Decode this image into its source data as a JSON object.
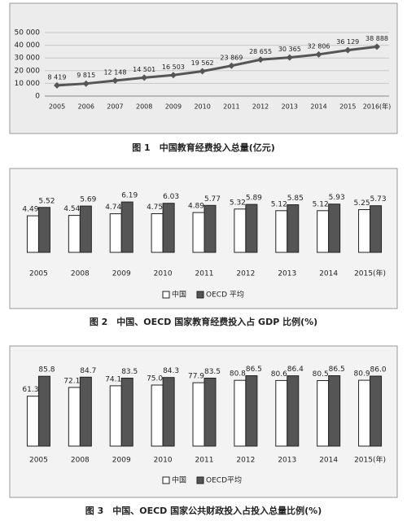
{
  "chart_data": [
    {
      "type": "line",
      "title": "图 1　中国教育经费投入总量(亿元)",
      "categories": [
        "2005",
        "2006",
        "2007",
        "2008",
        "2009",
        "2010",
        "2011",
        "2012",
        "2013",
        "2014",
        "2015",
        "2016(年)"
      ],
      "values": [
        8419,
        9815,
        12148,
        14501,
        16503,
        19562,
        23869,
        28655,
        30365,
        32806,
        36129,
        38888
      ],
      "value_labels": [
        "8 419",
        "9 815",
        "12 148",
        "14 501",
        "16 503",
        "19 562",
        "23 869",
        "28 655",
        "30 365",
        "32 806",
        "36 129",
        "38 888"
      ],
      "color": "#555555",
      "ylim": [
        0,
        50000
      ],
      "yticks": [
        0,
        {
          "value": 10000,
          "label": "10 000"
        },
        {
          "value": 20000,
          "label": "20 000"
        },
        {
          "value": 30000,
          "label": "30 000"
        },
        {
          "value": 40000,
          "label": "40 000"
        },
        {
          "value": 50000,
          "label": "50 000"
        }
      ],
      "grid": true
    },
    {
      "type": "bar",
      "title": "图 2　中国、OECD 国家教育经费投入占 GDP 比例(%)",
      "categories": [
        "2005",
        "2008",
        "2009",
        "2010",
        "2011",
        "2012",
        "2013",
        "2014",
        "2015(年)"
      ],
      "series": [
        {
          "name": "中国",
          "color": "#ffffff",
          "values": [
            4.49,
            4.54,
            4.74,
            4.75,
            4.89,
            5.32,
            5.12,
            5.12,
            5.25
          ]
        },
        {
          "name": "OECD 平均",
          "color": "#555555",
          "values": [
            5.52,
            5.69,
            6.19,
            6.03,
            5.77,
            5.89,
            5.85,
            5.93,
            5.73
          ]
        }
      ],
      "ylim": [
        0,
        10
      ],
      "legend": "bottom"
    },
    {
      "type": "bar",
      "title": "图 3　中国、OECD 国家公共财政投入占投入总量比例(%)",
      "categories": [
        "2005",
        "2008",
        "2009",
        "2010",
        "2011",
        "2012",
        "2013",
        "2014",
        "2015(年)"
      ],
      "series": [
        {
          "name": "中国",
          "color": "#ffffff",
          "values": [
            61.3,
            72.1,
            74.1,
            75.0,
            77.9,
            80.8,
            80.6,
            80.5,
            80.9
          ],
          "value_labels": [
            "61.3",
            "72.1",
            "74.1",
            "75.0",
            "77.9",
            "80.8",
            "80.6",
            "80.5",
            "80.9"
          ]
        },
        {
          "name": "OECD平均",
          "color": "#555555",
          "values": [
            85.8,
            84.7,
            83.5,
            84.3,
            83.5,
            86.5,
            86.4,
            86.5,
            86.0
          ],
          "value_labels": [
            "85.8",
            "84.7",
            "83.5",
            "84.3",
            "83.5",
            "86.5",
            "86.4",
            "86.5",
            "86.0"
          ]
        }
      ],
      "ylim": [
        0,
        100
      ],
      "legend": "bottom"
    }
  ]
}
